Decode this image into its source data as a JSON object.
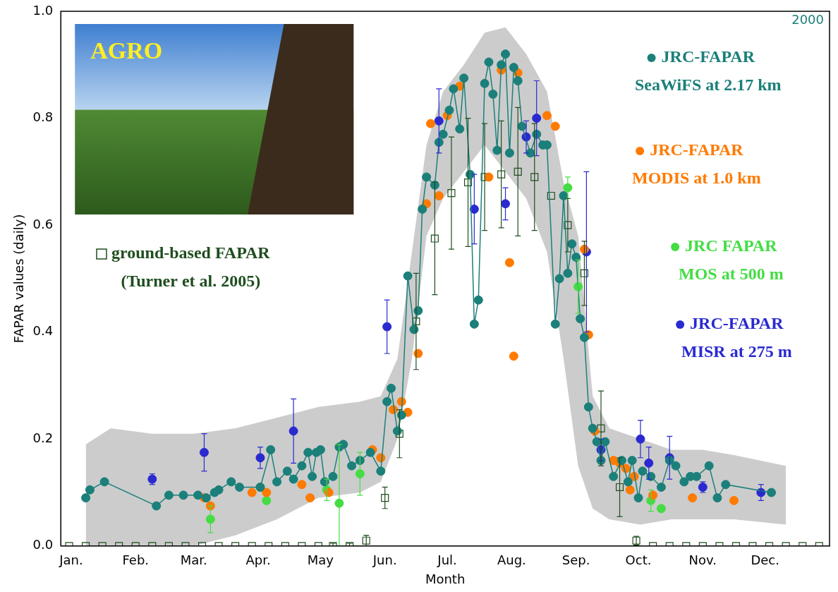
{
  "chart_data": {
    "type": "line",
    "xlabel": "Month",
    "ylabel": "FAPAR values (daily)",
    "corner_text": "2000",
    "inset_text": "AGRO",
    "xlim": [
      -4,
      366
    ],
    "ylim": [
      0,
      1
    ],
    "xticks": [
      {
        "value": 1,
        "label": "Jan."
      },
      {
        "value": 32,
        "label": "Feb."
      },
      {
        "value": 60,
        "label": "Mar."
      },
      {
        "value": 91,
        "label": "Apr."
      },
      {
        "value": 121,
        "label": "May"
      },
      {
        "value": 152,
        "label": "Jun."
      },
      {
        "value": 182,
        "label": "Jul."
      },
      {
        "value": 213,
        "label": "Aug."
      },
      {
        "value": 244,
        "label": "Sep."
      },
      {
        "value": 274,
        "label": "Oct."
      },
      {
        "value": 305,
        "label": "Nov."
      },
      {
        "value": 335,
        "label": "Dec."
      }
    ],
    "yticks": [
      {
        "value": 0,
        "label": "0.0"
      },
      0.2,
      0.4,
      0.6,
      0.8,
      {
        "value": 1,
        "label": "1.0"
      }
    ],
    "grid": false,
    "legend": "right",
    "envelope": {
      "color": "#cccccc",
      "x": [
        8,
        20,
        40,
        60,
        80,
        100,
        120,
        140,
        150,
        158,
        165,
        172,
        180,
        190,
        200,
        210,
        220,
        230,
        238,
        245,
        252,
        260,
        275,
        290,
        305,
        320,
        345
      ],
      "lower": [
        0,
        0,
        0,
        0,
        0.02,
        0.05,
        0.09,
        0.1,
        0.12,
        0.2,
        0.35,
        0.58,
        0.65,
        0.7,
        0.75,
        0.7,
        0.65,
        0.55,
        0.35,
        0.15,
        0.07,
        0.05,
        0.04,
        0.05,
        0.05,
        0.05,
        0.04
      ],
      "upper": [
        0.19,
        0.22,
        0.21,
        0.21,
        0.22,
        0.24,
        0.26,
        0.27,
        0.28,
        0.35,
        0.55,
        0.75,
        0.85,
        0.9,
        0.96,
        0.97,
        0.92,
        0.85,
        0.68,
        0.58,
        0.28,
        0.22,
        0.2,
        0.18,
        0.18,
        0.17,
        0.15
      ]
    },
    "series": [
      {
        "name": "JRC-FAPAR\nSeaWiFS at 2.17 km",
        "color": "#1b7f7a",
        "type": "line",
        "marker": "circle",
        "line_style": "solid",
        "x": [
          8,
          10,
          17,
          42,
          48,
          55,
          62,
          66,
          70,
          72,
          78,
          82,
          92,
          97,
          100,
          105,
          108,
          112,
          115,
          117,
          119,
          121,
          123,
          127,
          130,
          132,
          136,
          140,
          145,
          150,
          153,
          155,
          158,
          160,
          163,
          166,
          168,
          170,
          172,
          176,
          178,
          180,
          183,
          185,
          188,
          190,
          193,
          195,
          197,
          200,
          202,
          204,
          206,
          208,
          210,
          212,
          214,
          216,
          218,
          222,
          225,
          228,
          230,
          234,
          236,
          238,
          240,
          242,
          244,
          246,
          248,
          250,
          252,
          254,
          256,
          258,
          262,
          266,
          269,
          271,
          274,
          276,
          280,
          285,
          289,
          292,
          296,
          299,
          302,
          308,
          312,
          316,
          338
        ],
        "values": [
          0.09,
          0.105,
          0.12,
          0.075,
          0.095,
          0.095,
          0.095,
          0.09,
          0.1,
          0.105,
          0.12,
          0.11,
          0.11,
          0.18,
          0.12,
          0.14,
          0.125,
          0.15,
          0.175,
          0.13,
          0.175,
          0.18,
          0.12,
          0.13,
          0.185,
          0.19,
          0.15,
          0.16,
          0.175,
          0.14,
          0.27,
          0.295,
          0.215,
          0.245,
          0.505,
          0.405,
          0.44,
          0.63,
          0.69,
          0.675,
          0.755,
          0.77,
          0.815,
          0.855,
          0.78,
          0.875,
          0.695,
          0.415,
          0.46,
          0.865,
          0.905,
          0.845,
          0.74,
          0.9,
          0.92,
          0.735,
          0.895,
          0.87,
          0.785,
          0.735,
          0.77,
          0.75,
          0.75,
          0.415,
          0.5,
          0.655,
          0.51,
          0.565,
          0.54,
          0.425,
          0.39,
          0.26,
          0.22,
          0.195,
          0.16,
          0.195,
          0.13,
          0.16,
          0.12,
          0.16,
          0.09,
          0.14,
          0.13,
          0.11,
          0.16,
          0.15,
          0.12,
          0.13,
          0.13,
          0.15,
          0.09,
          0.115,
          0.1
        ]
      },
      {
        "name": "JRC-FAPAR\nMODIS at 1.0 km",
        "color": "#ff7a00",
        "type": "scatter",
        "marker": "circle",
        "x": [
          65,
          68,
          88,
          92,
          95,
          112,
          116,
          125,
          146,
          150,
          156,
          160,
          163,
          168,
          172,
          174,
          178,
          182,
          188,
          202,
          208,
          212,
          214,
          216,
          230,
          234,
          248,
          250,
          253,
          262,
          265,
          268,
          270,
          272,
          281,
          300,
          320
        ],
        "values": [
          0.09,
          0.075,
          0.1,
          0.11,
          0.1,
          0.115,
          0.09,
          0.1,
          0.18,
          0.165,
          0.255,
          0.27,
          0.25,
          0.36,
          0.64,
          0.79,
          0.655,
          0.805,
          0.86,
          0.69,
          0.89,
          0.53,
          0.355,
          0.885,
          0.805,
          0.785,
          0.555,
          0.395,
          0.215,
          0.16,
          0.155,
          0.145,
          0.105,
          0.13,
          0.095,
          0.09,
          0.085
        ]
      },
      {
        "name": "JRC FAPAR\nMOS at 500 m",
        "color": "#44dd44",
        "type": "scatter",
        "marker": "circle",
        "x": [
          68,
          95,
          124,
          130,
          140,
          240,
          245,
          280,
          285
        ],
        "values": [
          0.05,
          0.085,
          0.105,
          0.08,
          0.135,
          0.67,
          0.485,
          0.085,
          0.07
        ],
        "errors": [
          0.025,
          null,
          0.02,
          0.11,
          0.04,
          0.02,
          0.05,
          0.02,
          null
        ]
      },
      {
        "name": "JRC-FAPAR\nMISR at 275 m",
        "color": "#2a2ad0",
        "type": "scatter",
        "marker": "circle",
        "x": [
          40,
          65,
          92,
          108,
          153,
          178,
          195,
          210,
          220,
          225,
          249,
          256,
          275,
          279,
          289,
          305,
          333
        ],
        "values": [
          0.125,
          0.175,
          0.165,
          0.215,
          0.41,
          0.795,
          0.63,
          0.64,
          0.765,
          0.8,
          0.55,
          0.18,
          0.2,
          0.155,
          0.165,
          0.11,
          0.1
        ],
        "errors": [
          0.01,
          0.035,
          0.02,
          0.06,
          0.05,
          0.06,
          0.065,
          0.03,
          0.03,
          0.07,
          0.15,
          0.02,
          0.035,
          0.03,
          0.04,
          0.01,
          0.015
        ]
      },
      {
        "name": "ground-based FAPAR\n(Turner et al. 2005)",
        "color": "#1f4d1f",
        "type": "scatter",
        "marker": "open_square",
        "x": [
          0,
          8,
          16,
          24,
          32,
          40,
          48,
          56,
          64,
          72,
          80,
          88,
          96,
          104,
          112,
          120,
          127,
          135,
          143,
          152,
          159,
          167,
          176,
          184,
          192,
          200,
          208,
          216,
          224,
          232,
          240,
          248,
          256,
          265,
          273,
          281,
          289,
          297,
          305,
          313,
          321,
          329,
          337,
          345,
          353,
          361
        ],
        "values": [
          0,
          0,
          0,
          0,
          0,
          0,
          0,
          0,
          0,
          0,
          0,
          0,
          0,
          0,
          0,
          0,
          0,
          0,
          0.01,
          0.09,
          0.21,
          0.42,
          0.575,
          0.66,
          0.68,
          0.69,
          0.695,
          0.7,
          0.69,
          0.655,
          0.6,
          0.51,
          0.22,
          0.11,
          0.01,
          0,
          0,
          0,
          0,
          0,
          0,
          0,
          0,
          0,
          0,
          0
        ],
        "errors": [
          null,
          null,
          null,
          null,
          null,
          null,
          null,
          null,
          null,
          null,
          null,
          null,
          null,
          null,
          null,
          null,
          0.005,
          0.005,
          0.01,
          0.02,
          0.045,
          0.09,
          0.105,
          0.105,
          0.12,
          0.1,
          0.1,
          0.12,
          0.1,
          null,
          0.05,
          0.06,
          0.07,
          0.055,
          0.008,
          null,
          null,
          null,
          null,
          null,
          null,
          null,
          null,
          null,
          null,
          null
        ]
      }
    ]
  }
}
